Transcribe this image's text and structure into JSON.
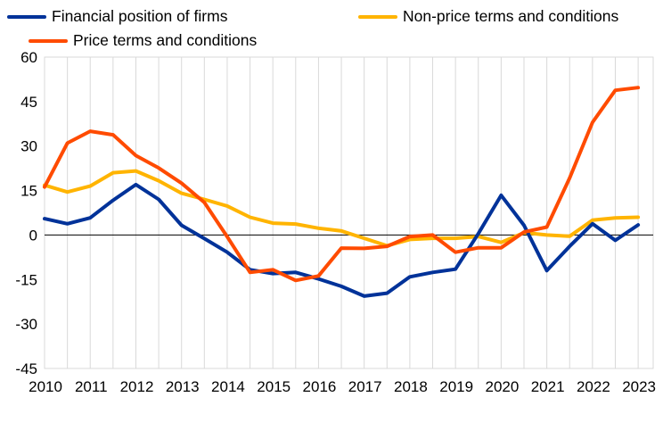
{
  "chart_data": {
    "type": "line",
    "title": "",
    "xlabel": "",
    "ylabel": "",
    "ylim": [
      -45,
      60
    ],
    "yticks": [
      60,
      45,
      30,
      15,
      0,
      -15,
      -30,
      -45
    ],
    "xlim": [
      2010,
      2023.33
    ],
    "year_ticks": [
      "2010",
      "2011",
      "2012",
      "2013",
      "2014",
      "2015",
      "2016",
      "2017",
      "2018",
      "2019",
      "2020",
      "2021",
      "2022",
      "2023"
    ],
    "grid": "vertical",
    "legend_position": "top",
    "x": [
      2010.0,
      2010.5,
      2011.0,
      2011.5,
      2012.0,
      2012.5,
      2013.0,
      2013.5,
      2014.0,
      2014.5,
      2015.0,
      2015.5,
      2016.0,
      2016.5,
      2017.0,
      2017.5,
      2018.0,
      2018.5,
      2019.0,
      2019.5,
      2020.0,
      2020.5,
      2021.0,
      2021.5,
      2022.0,
      2022.5,
      2023.0
    ],
    "series": [
      {
        "name": "Financial position of firms",
        "color": "#003299",
        "values": [
          5.5,
          3.8,
          5.8,
          11.7,
          17.0,
          12.0,
          3.3,
          -1.2,
          -5.8,
          -11.7,
          -13.0,
          -12.6,
          -14.8,
          -17.3,
          -20.6,
          -19.6,
          -14.1,
          -12.6,
          -11.5,
          0.5,
          13.4,
          3.3,
          -12.0,
          -3.8,
          3.8,
          -1.8,
          3.4
        ]
      },
      {
        "name": "Non-price terms and conditions",
        "color": "#FFB400",
        "values": [
          16.8,
          14.5,
          16.5,
          21.0,
          21.6,
          18.3,
          14.1,
          12.0,
          9.8,
          6.0,
          4.0,
          3.7,
          2.3,
          1.4,
          -1.1,
          -3.6,
          -1.5,
          -1.1,
          -1.1,
          -0.5,
          -2.5,
          0.8,
          0.0,
          -0.4,
          5.0,
          5.8,
          6.0
        ]
      },
      {
        "name": "Price terms and conditions",
        "color": "#FF4B00",
        "values": [
          16.2,
          31.0,
          35.0,
          33.8,
          26.8,
          22.6,
          17.5,
          11.0,
          -0.6,
          -12.6,
          -11.7,
          -15.3,
          -13.8,
          -4.4,
          -4.5,
          -3.8,
          -0.5,
          0.0,
          -5.8,
          -4.3,
          -4.3,
          1.0,
          2.7,
          19.2,
          38.0,
          48.8,
          49.7
        ]
      }
    ]
  }
}
